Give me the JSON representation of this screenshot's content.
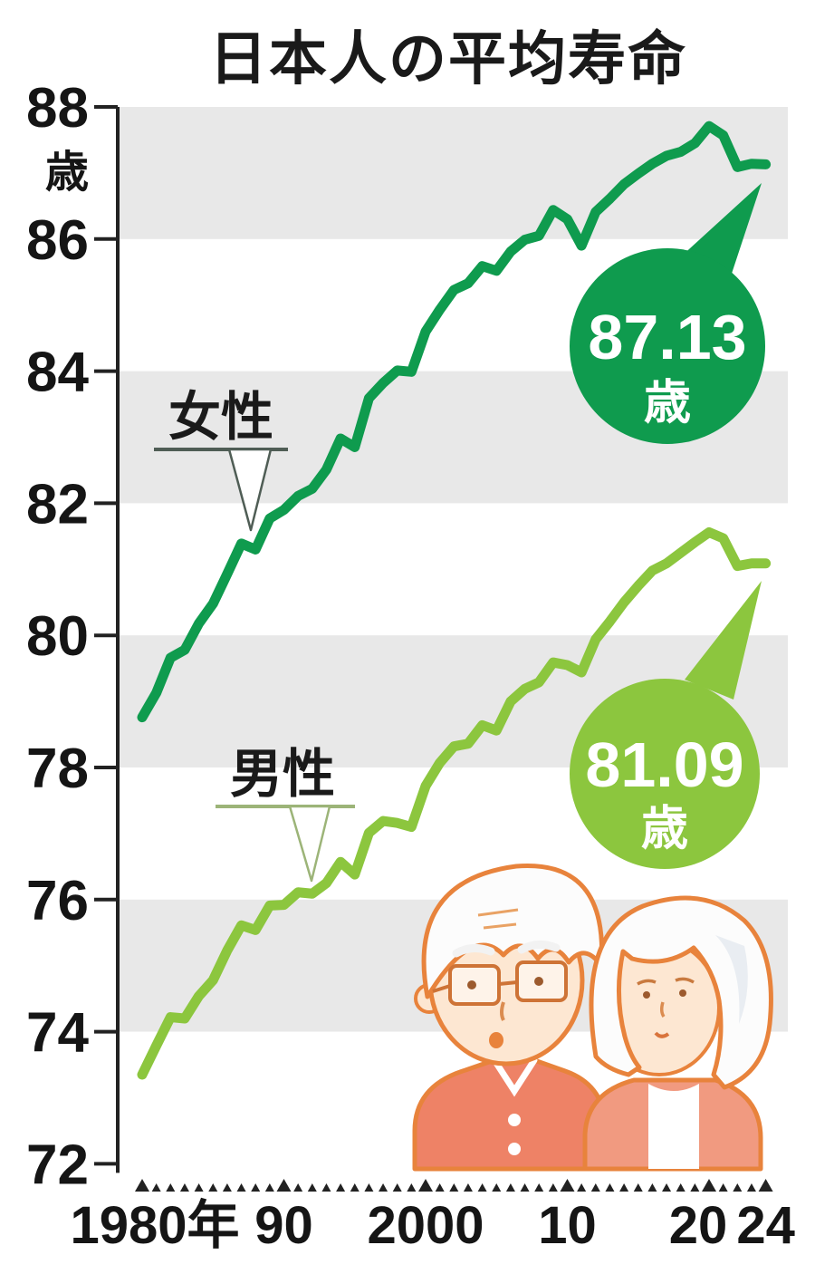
{
  "chart_data": {
    "type": "line",
    "title": "日本人の平均寿命",
    "y_unit": "歳",
    "ylim": [
      72,
      88
    ],
    "y_ticks": [
      88,
      86,
      84,
      82,
      80,
      78,
      76,
      74,
      72
    ],
    "x_years": [
      1980,
      1981,
      1982,
      1983,
      1984,
      1985,
      1986,
      1987,
      1988,
      1989,
      1990,
      1991,
      1992,
      1993,
      1994,
      1995,
      1996,
      1997,
      1998,
      1999,
      2000,
      2001,
      2002,
      2003,
      2004,
      2005,
      2006,
      2007,
      2008,
      2009,
      2010,
      2011,
      2012,
      2013,
      2014,
      2015,
      2016,
      2017,
      2018,
      2019,
      2020,
      2021,
      2022,
      2023,
      2024
    ],
    "x_ticks": [
      {
        "label": "1980年",
        "year": 1980
      },
      {
        "label": "90",
        "year": 1990
      },
      {
        "label": "2000",
        "year": 2000
      },
      {
        "label": "10",
        "year": 2010
      },
      {
        "label": "20",
        "year": 2020
      },
      {
        "label": "24",
        "year": 2024
      }
    ],
    "grid": "banded",
    "legend_position": "inline-callouts",
    "series": [
      {
        "name": "女性",
        "color": "#0f9b4e",
        "callout": {
          "value": "87.13",
          "unit": "歳"
        },
        "values": [
          78.76,
          79.13,
          79.66,
          79.78,
          80.18,
          80.48,
          80.93,
          81.39,
          81.3,
          81.77,
          81.9,
          82.11,
          82.22,
          82.51,
          82.98,
          82.85,
          83.59,
          83.82,
          84.01,
          83.99,
          84.6,
          84.93,
          85.23,
          85.33,
          85.59,
          85.52,
          85.81,
          85.99,
          86.05,
          86.44,
          86.3,
          85.9,
          86.41,
          86.61,
          86.83,
          86.99,
          87.14,
          87.26,
          87.32,
          87.45,
          87.71,
          87.57,
          87.09,
          87.14,
          87.13
        ]
      },
      {
        "name": "男性",
        "color": "#8cc63e",
        "callout": {
          "value": "81.09",
          "unit": "歳"
        },
        "values": [
          73.35,
          73.79,
          74.22,
          74.2,
          74.54,
          74.78,
          75.23,
          75.61,
          75.54,
          75.91,
          75.92,
          76.11,
          76.09,
          76.25,
          76.57,
          76.38,
          77.01,
          77.19,
          77.16,
          77.1,
          77.72,
          78.07,
          78.32,
          78.36,
          78.64,
          78.56,
          79.0,
          79.19,
          79.29,
          79.59,
          79.55,
          79.44,
          79.94,
          80.21,
          80.5,
          80.75,
          80.98,
          81.09,
          81.25,
          81.41,
          81.56,
          81.47,
          81.05,
          81.09,
          81.09
        ]
      }
    ],
    "colors": {
      "band": "#e8e8e8",
      "axis": "#222222",
      "text": "#151515",
      "leader_female": "#4f5d55",
      "leader_male": "#9cb478"
    }
  },
  "illustration": {
    "name": "elderly-couple",
    "colors": {
      "outline": "#e8833c",
      "skin": "#fde7d2",
      "hair": "#fcfcfc",
      "hair_shade": "#e9edf2",
      "man_sweater": "#ee8266",
      "woman_cardigan": "#f19a80",
      "feature": "#c97a3f",
      "eye": "#9c5a2e"
    }
  }
}
